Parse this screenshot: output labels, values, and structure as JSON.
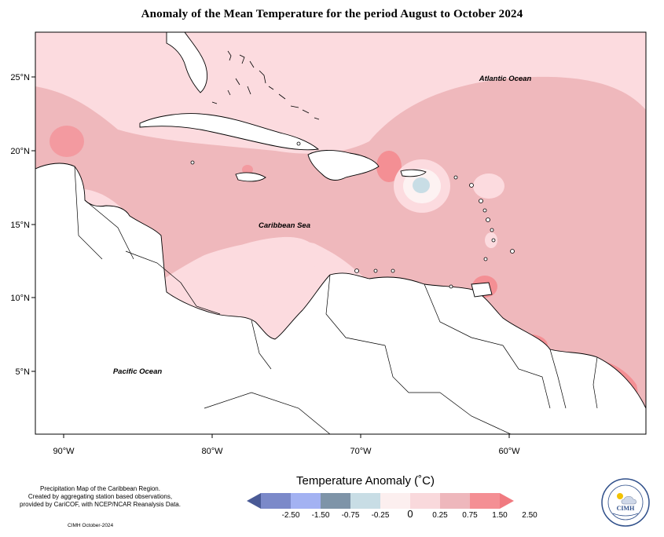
{
  "title": "Anomaly of the Mean Temperature for the period August to October 2024",
  "axes": {
    "x_ticks": [
      "90°W",
      "80°W",
      "70°W",
      "60°W"
    ],
    "y_ticks": [
      "25°N",
      "20°N",
      "15°N",
      "10°N",
      "5°N"
    ]
  },
  "labels": {
    "atlantic": "Atlantic Ocean",
    "caribbean": "Caribbean Sea",
    "pacific": "Pacific Ocean"
  },
  "legend": {
    "title": "Temperature Anomaly (˚C)",
    "tick_labels": [
      "-2.50",
      "-1.50",
      "-0.75",
      "-0.25",
      "0",
      "0.25",
      "0.75",
      "1.50",
      "2.50"
    ],
    "colors": [
      "#4a5a96",
      "#7b89c9",
      "#a3b2f2",
      "#7e94a8",
      "#c8dde5",
      "#fcefef",
      "#f9d9dc",
      "#eeb7bc",
      "#f48f94",
      "#f07a80"
    ]
  },
  "credits": {
    "line1": "Precipitation Map of the Caribbean Region.",
    "line2": "Created by aggregating station based observations,",
    "line3": "provided by CariCOF, with NCEP/NCAR Reanalysis Data.",
    "footer": "CIMH October-2024"
  },
  "logo": {
    "text": "CIMH"
  }
}
